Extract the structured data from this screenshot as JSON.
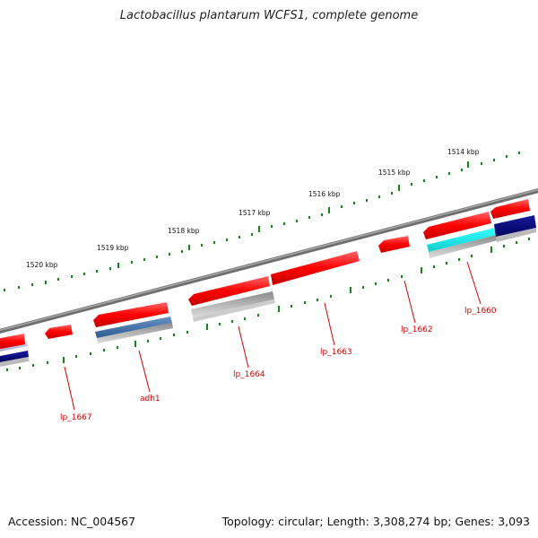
{
  "title": "Lactobacillus plantarum WCFS1, complete genome",
  "footer": {
    "accession": "Accession: NC_004567",
    "topology": "Topology: circular; Length: 3,308,274 bp; Genes: 3,093"
  },
  "scale_labels": [
    "1520 kbp",
    "1519 kbp",
    "1518 kbp",
    "1517 kbp",
    "1516 kbp",
    "1515 kbp",
    "1514 kbp"
  ],
  "gene_labels": [
    "lp_1667",
    "adh1",
    "lp_1664",
    "lp_1663",
    "lp_1662",
    "lp_1660"
  ],
  "colors": {
    "gene": "#ff1a1a",
    "backbone": "#777777",
    "scale_tick": "#118811",
    "label": "#d40000",
    "track_gray": "#aaaaaa",
    "track_steelblue": "#4a76ad",
    "track_cyan": "#22eeee",
    "track_navy": "#000080"
  }
}
